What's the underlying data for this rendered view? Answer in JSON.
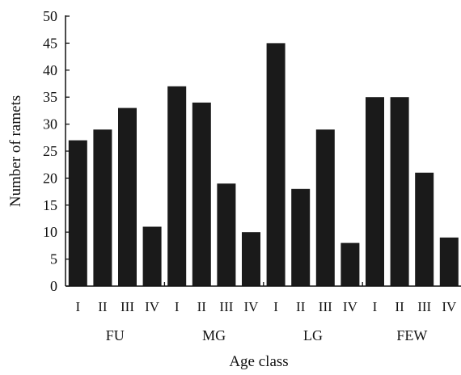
{
  "chart_data": {
    "type": "bar",
    "title": "",
    "xlabel": "Age class",
    "ylabel": "Number of ramets",
    "ylim": [
      0,
      50
    ],
    "yticks": [
      0,
      5,
      10,
      15,
      20,
      25,
      30,
      35,
      40,
      45,
      50
    ],
    "grid": false,
    "legend": "none",
    "bar_color": "#1a1a1a",
    "groups": [
      {
        "name": "FU",
        "categories": [
          "I",
          "II",
          "III",
          "IV"
        ],
        "values": [
          27,
          29,
          33,
          11
        ]
      },
      {
        "name": "MG",
        "categories": [
          "I",
          "II",
          "III",
          "IV"
        ],
        "values": [
          37,
          34,
          19,
          10
        ]
      },
      {
        "name": "LG",
        "categories": [
          "I",
          "II",
          "III",
          "IV"
        ],
        "values": [
          45,
          18,
          29,
          8
        ]
      },
      {
        "name": "FEW",
        "categories": [
          "I",
          "II",
          "III",
          "IV"
        ],
        "values": [
          35,
          35,
          21,
          9
        ]
      }
    ]
  }
}
